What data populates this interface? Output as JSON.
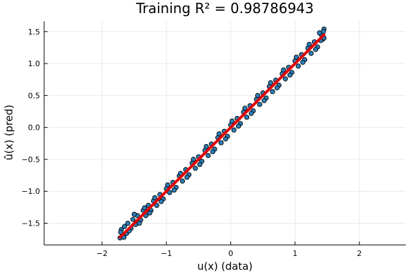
{
  "chart_data": {
    "type": "scatter",
    "title": "Training R² = 0.98786943",
    "xlabel": "u(x) (data)",
    "ylabel": "û(x) (pred)",
    "xlim": [
      -2.9,
      2.72
    ],
    "ylim": [
      -1.84,
      1.66
    ],
    "xticks": [
      -2,
      -1,
      0,
      1,
      2
    ],
    "xtick_labels": [
      "−2",
      "−1",
      "0",
      "1",
      "2"
    ],
    "yticks": [
      -1.5,
      -1.0,
      -0.5,
      0.0,
      0.5,
      1.0,
      1.5
    ],
    "ytick_labels": [
      "−1.5",
      "−1.0",
      "−0.5",
      "0.0",
      "0.5",
      "1.0",
      "1.5"
    ],
    "grid": true,
    "legend": "none",
    "series": [
      {
        "kind": "scatter",
        "color": "#2c7fb8",
        "edge_color": "#000000",
        "points": [
          [
            -1.72,
            -1.73
          ],
          [
            -1.7,
            -1.6
          ],
          [
            -1.68,
            -1.68
          ],
          [
            -1.65,
            -1.55
          ],
          [
            -1.62,
            -1.66
          ],
          [
            -1.6,
            -1.5
          ],
          [
            -1.55,
            -1.58
          ],
          [
            -1.52,
            -1.44
          ],
          [
            -1.48,
            -1.52
          ],
          [
            -1.45,
            -1.38
          ],
          [
            -1.4,
            -1.45
          ],
          [
            -1.36,
            -1.3
          ],
          [
            -1.32,
            -1.38
          ],
          [
            -1.28,
            -1.22
          ],
          [
            -1.24,
            -1.3
          ],
          [
            -1.2,
            -1.15
          ],
          [
            -1.15,
            -1.22
          ],
          [
            -1.1,
            -1.05
          ],
          [
            -1.05,
            -1.12
          ],
          [
            -1.0,
            -0.96
          ],
          [
            -0.95,
            -1.02
          ],
          [
            -0.9,
            -0.86
          ],
          [
            -0.85,
            -0.94
          ],
          [
            -0.8,
            -0.76
          ],
          [
            -0.75,
            -0.84
          ],
          [
            -0.7,
            -0.66
          ],
          [
            -0.65,
            -0.74
          ],
          [
            -0.6,
            -0.56
          ],
          [
            -0.55,
            -0.64
          ],
          [
            -0.5,
            -0.46
          ],
          [
            -0.45,
            -0.53
          ],
          [
            -0.4,
            -0.36
          ],
          [
            -0.35,
            -0.44
          ],
          [
            -0.3,
            -0.26
          ],
          [
            -0.25,
            -0.34
          ],
          [
            -0.2,
            -0.16
          ],
          [
            -0.15,
            -0.24
          ],
          [
            -0.1,
            -0.06
          ],
          [
            -0.05,
            -0.14
          ],
          [
            0.0,
            0.04
          ],
          [
            0.05,
            -0.04
          ],
          [
            0.1,
            0.14
          ],
          [
            0.15,
            0.06
          ],
          [
            0.2,
            0.24
          ],
          [
            0.25,
            0.16
          ],
          [
            0.3,
            0.34
          ],
          [
            0.35,
            0.26
          ],
          [
            0.4,
            0.44
          ],
          [
            0.45,
            0.36
          ],
          [
            0.5,
            0.54
          ],
          [
            0.55,
            0.46
          ],
          [
            0.6,
            0.64
          ],
          [
            0.65,
            0.56
          ],
          [
            0.7,
            0.74
          ],
          [
            0.75,
            0.66
          ],
          [
            0.8,
            0.84
          ],
          [
            0.85,
            0.76
          ],
          [
            0.9,
            0.94
          ],
          [
            0.95,
            0.86
          ],
          [
            1.0,
            1.04
          ],
          [
            1.05,
            0.96
          ],
          [
            1.1,
            1.14
          ],
          [
            1.15,
            1.06
          ],
          [
            1.2,
            1.24
          ],
          [
            1.25,
            1.16
          ],
          [
            1.3,
            1.34
          ],
          [
            1.35,
            1.26
          ],
          [
            1.4,
            1.46
          ],
          [
            1.43,
            1.38
          ],
          [
            1.45,
            1.54
          ],
          [
            1.45,
            1.4
          ],
          [
            1.44,
            1.5
          ],
          [
            -1.71,
            -1.64
          ],
          [
            -1.66,
            -1.72
          ],
          [
            -1.58,
            -1.62
          ],
          [
            -1.5,
            -1.36
          ],
          [
            -1.42,
            -1.5
          ],
          [
            -1.34,
            -1.26
          ],
          [
            -1.26,
            -1.34
          ],
          [
            -1.18,
            -1.1
          ],
          [
            -1.08,
            -1.16
          ],
          [
            -0.98,
            -0.9
          ],
          [
            -0.88,
            -0.98
          ],
          [
            -0.78,
            -0.72
          ],
          [
            -0.68,
            -0.78
          ],
          [
            -0.58,
            -0.5
          ],
          [
            -0.48,
            -0.58
          ],
          [
            -0.38,
            -0.3
          ],
          [
            -0.28,
            -0.38
          ],
          [
            -0.18,
            -0.1
          ],
          [
            -0.08,
            -0.18
          ],
          [
            0.02,
            0.1
          ],
          [
            0.12,
            0.02
          ],
          [
            0.22,
            0.3
          ],
          [
            0.32,
            0.22
          ],
          [
            0.42,
            0.5
          ],
          [
            0.52,
            0.42
          ],
          [
            0.62,
            0.7
          ],
          [
            0.72,
            0.62
          ],
          [
            0.82,
            0.9
          ],
          [
            0.92,
            0.82
          ],
          [
            1.02,
            1.1
          ],
          [
            1.12,
            1.02
          ],
          [
            1.22,
            1.3
          ],
          [
            1.32,
            1.22
          ],
          [
            1.4,
            1.36
          ],
          [
            1.38,
            1.48
          ]
        ]
      },
      {
        "kind": "line",
        "color": "#e00000",
        "x": [
          -1.72,
          1.45
        ],
        "y": [
          -1.72,
          1.45
        ]
      }
    ]
  }
}
